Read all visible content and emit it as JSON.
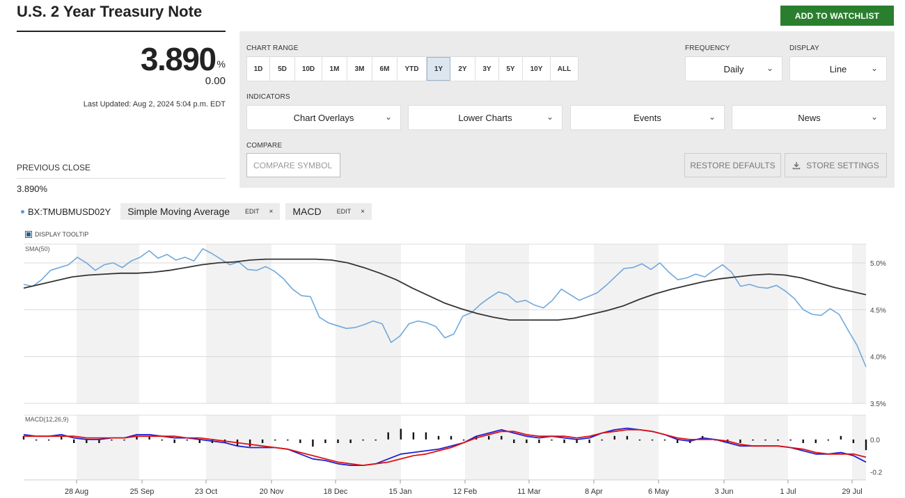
{
  "title": "U.S. 2 Year Treasury Note",
  "watchlist_button": "ADD TO WATCHLIST",
  "quote": {
    "price": "3.890",
    "unit": "%",
    "change": "0.00",
    "last_updated": "Last Updated: Aug 2, 2024 5:04 p.m. EDT",
    "previous_close_label": "PREVIOUS CLOSE",
    "previous_close_value": "3.890%"
  },
  "controls": {
    "chart_range_label": "CHART RANGE",
    "ranges": [
      "1D",
      "5D",
      "10D",
      "1M",
      "3M",
      "6M",
      "YTD",
      "1Y",
      "2Y",
      "3Y",
      "5Y",
      "10Y",
      "ALL"
    ],
    "active_range": "1Y",
    "frequency_label": "FREQUENCY",
    "frequency_value": "Daily",
    "display_label": "DISPLAY",
    "display_value": "Line",
    "indicators_label": "INDICATORS",
    "indicators": [
      "Chart Overlays",
      "Lower Charts",
      "Events",
      "News"
    ],
    "compare_label": "COMPARE",
    "compare_placeholder": "COMPARE SYMBOL",
    "restore_defaults": "RESTORE DEFAULTS",
    "store_settings": "STORE SETTINGS"
  },
  "chips": {
    "symbol": "BX:TMUBMUSD02Y",
    "sma_name": "Simple Moving Average",
    "sma_edit": "EDIT",
    "sma_close": "×",
    "macd_name": "MACD",
    "macd_edit": "EDIT",
    "macd_close": "×"
  },
  "display_tooltip": "DISPLAY TOOLTIP",
  "colors": {
    "accent_green": "#2a7f2e",
    "price_line": "#6fa8dc",
    "sma_line": "#333333",
    "macd_line": "#1f1fd0",
    "signal_line": "#e01010"
  },
  "chart_data": [
    {
      "type": "line",
      "title": "SMA(50)",
      "x_axis_labels": [
        "28 Aug",
        "25 Sep",
        "23 Oct",
        "20 Nov",
        "18 Dec",
        "15 Jan",
        "12 Feb",
        "11 Mar",
        "8 Apr",
        "6 May",
        "3 Jun",
        "1 Jul",
        "29 Jul"
      ],
      "y_tick_labels": [
        "5.0%",
        "4.5%",
        "4.0%",
        "3.5%"
      ],
      "ylim": [
        3.5,
        5.2
      ],
      "series": [
        {
          "name": "BX:TMUBMUSD02Y",
          "values": [
            4.77,
            4.75,
            4.82,
            4.92,
            4.95,
            4.98,
            5.06,
            5.0,
            4.92,
            4.98,
            5.0,
            4.95,
            5.02,
            5.06,
            5.13,
            5.05,
            5.09,
            5.03,
            5.06,
            5.02,
            5.15,
            5.1,
            5.04,
            4.98,
            5.01,
            4.93,
            4.92,
            4.96,
            4.91,
            4.83,
            4.72,
            4.65,
            4.64,
            4.42,
            4.36,
            4.33,
            4.3,
            4.31,
            4.34,
            4.38,
            4.35,
            4.15,
            4.22,
            4.35,
            4.38,
            4.36,
            4.32,
            4.2,
            4.24,
            4.43,
            4.47,
            4.56,
            4.63,
            4.69,
            4.66,
            4.58,
            4.6,
            4.55,
            4.52,
            4.6,
            4.72,
            4.66,
            4.6,
            4.64,
            4.68,
            4.76,
            4.85,
            4.94,
            4.95,
            4.99,
            4.93,
            5.0,
            4.9,
            4.82,
            4.84,
            4.88,
            4.85,
            4.92,
            4.98,
            4.9,
            4.75,
            4.77,
            4.74,
            4.73,
            4.76,
            4.7,
            4.62,
            4.5,
            4.45,
            4.44,
            4.51,
            4.45,
            4.28,
            4.12,
            3.89
          ]
        },
        {
          "name": "SMA(50)",
          "values": [
            4.73,
            4.77,
            4.81,
            4.85,
            4.87,
            4.88,
            4.89,
            4.89,
            4.9,
            4.92,
            4.95,
            4.98,
            5.0,
            5.01,
            5.03,
            5.04,
            5.04,
            5.04,
            5.04,
            5.03,
            5.0,
            4.95,
            4.89,
            4.82,
            4.73,
            4.65,
            4.57,
            4.51,
            4.46,
            4.42,
            4.39,
            4.39,
            4.39,
            4.39,
            4.41,
            4.45,
            4.49,
            4.54,
            4.61,
            4.67,
            4.72,
            4.76,
            4.8,
            4.83,
            4.85,
            4.87,
            4.88,
            4.87,
            4.84,
            4.79,
            4.74,
            4.7,
            4.66
          ]
        }
      ]
    },
    {
      "type": "line",
      "title": "MACD(12,26,9)",
      "y_tick_labels": [
        "0.0",
        "-0.2"
      ],
      "ylim": [
        -0.25,
        0.15
      ],
      "series": [
        {
          "name": "MACD",
          "values": [
            0.03,
            0.02,
            0.02,
            0.03,
            0.01,
            0.0,
            0.0,
            0.01,
            0.01,
            0.03,
            0.03,
            0.02,
            0.01,
            0.01,
            0.0,
            -0.01,
            -0.02,
            -0.04,
            -0.05,
            -0.05,
            -0.05,
            -0.06,
            -0.09,
            -0.12,
            -0.13,
            -0.15,
            -0.16,
            -0.16,
            -0.15,
            -0.12,
            -0.09,
            -0.08,
            -0.07,
            -0.06,
            -0.04,
            -0.02,
            0.02,
            0.04,
            0.06,
            0.04,
            0.02,
            0.01,
            0.02,
            0.01,
            0.0,
            0.01,
            0.04,
            0.06,
            0.07,
            0.06,
            0.05,
            0.03,
            0.0,
            -0.01,
            0.01,
            0.0,
            -0.02,
            -0.04,
            -0.04,
            -0.04,
            -0.04,
            -0.05,
            -0.07,
            -0.09,
            -0.09,
            -0.08,
            -0.1,
            -0.14
          ]
        },
        {
          "name": "Signal",
          "values": [
            0.02,
            0.02,
            0.02,
            0.02,
            0.02,
            0.01,
            0.01,
            0.01,
            0.01,
            0.02,
            0.02,
            0.02,
            0.02,
            0.01,
            0.01,
            0.0,
            -0.01,
            -0.02,
            -0.03,
            -0.04,
            -0.05,
            -0.06,
            -0.08,
            -0.1,
            -0.12,
            -0.14,
            -0.15,
            -0.16,
            -0.15,
            -0.14,
            -0.12,
            -0.1,
            -0.09,
            -0.07,
            -0.05,
            -0.02,
            0.01,
            0.03,
            0.05,
            0.05,
            0.03,
            0.02,
            0.02,
            0.02,
            0.01,
            0.02,
            0.04,
            0.05,
            0.06,
            0.06,
            0.05,
            0.03,
            0.01,
            0.0,
            0.0,
            0.0,
            -0.01,
            -0.03,
            -0.04,
            -0.04,
            -0.04,
            -0.05,
            -0.06,
            -0.08,
            -0.09,
            -0.09,
            -0.09,
            -0.11
          ]
        }
      ]
    }
  ]
}
